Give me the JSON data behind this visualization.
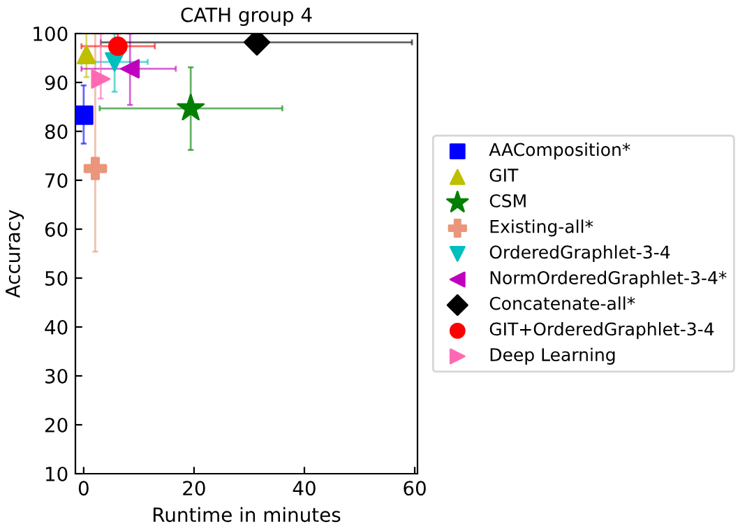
{
  "chart_data": {
    "type": "scatter",
    "title": "CATH group 4",
    "xlabel": "Runtime in minutes",
    "ylabel": "Accuracy",
    "xlim": [
      -1.5,
      60.5
    ],
    "ylim": [
      10,
      100
    ],
    "xticks": [
      0,
      20,
      40,
      60
    ],
    "yticks": [
      10,
      20,
      30,
      40,
      50,
      60,
      70,
      80,
      90,
      100
    ],
    "grid": false,
    "legend": "right",
    "series": [
      {
        "name": "AAComposition*",
        "color": "#0000ff",
        "marker": "square",
        "x": [
          0
        ],
        "values": [
          83.3
        ],
        "errors": [
          [
            77.5,
            89.4
          ]
        ]
      },
      {
        "name": "GIT",
        "color": "#bfbf00",
        "marker": "triangle",
        "x": [
          0.5
        ],
        "values": [
          95.7
        ],
        "errors": [
          [
            91.1,
            100
          ]
        ]
      },
      {
        "name": "CSM",
        "color": "#008000",
        "marker": "star",
        "x": [
          19.4
        ],
        "values": [
          84.7
        ],
        "errors": [
          [
            76.2,
            93.1
          ]
        ],
        "xerrors": [
          [
            2.9,
            36.0
          ]
        ]
      },
      {
        "name": "Existing-all*",
        "color": "#e9967a",
        "marker": "cross",
        "x": [
          2.1
        ],
        "values": [
          72.4
        ],
        "errors": [
          [
            55.4,
            100
          ]
        ],
        "xerrors": [
          [
            0.2,
            4.1
          ]
        ]
      },
      {
        "name": "OrderedGraphlet-3-4",
        "color": "#00bfbf",
        "marker": "triangle_down",
        "x": [
          5.6
        ],
        "values": [
          94.2
        ],
        "errors": [
          [
            88.1,
            100
          ]
        ],
        "xerrors": [
          [
            -0.4,
            11.6
          ]
        ]
      },
      {
        "name": "NormOrderedGraphlet-3-4*",
        "color": "#bf00bf",
        "marker": "triangle_left",
        "x": [
          8.4
        ],
        "values": [
          92.8
        ],
        "errors": [
          [
            85.4,
            100
          ]
        ],
        "xerrors": [
          [
            -0.4,
            16.7
          ]
        ]
      },
      {
        "name": "Concatenate-all*",
        "color": "#000000",
        "marker": "diamond",
        "x": [
          31.4
        ],
        "values": [
          98.2
        ],
        "xerrors": [
          [
            3.1,
            59.5
          ]
        ]
      },
      {
        "name": "GIT+OrderedGraphlet-3-4",
        "color": "#ff0000",
        "marker": "circle",
        "x": [
          6.2
        ],
        "values": [
          97.4
        ],
        "errors": [
          [
            94.7,
            100
          ]
        ],
        "xerrors": [
          [
            -0.4,
            12.9
          ]
        ]
      },
      {
        "name": "Deep Learning",
        "color": "#ff69b4",
        "marker": "triangle_right",
        "x": [
          3.1
        ],
        "values": [
          90.7
        ],
        "errors": [
          [
            86.7,
            100
          ]
        ]
      }
    ]
  }
}
